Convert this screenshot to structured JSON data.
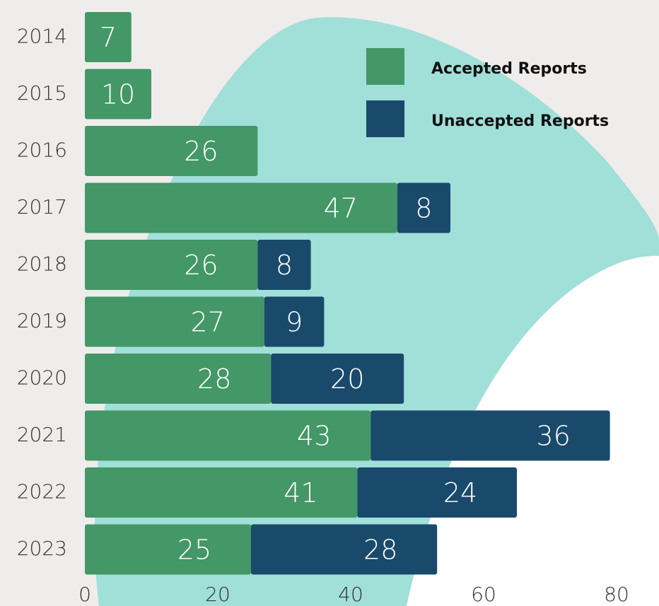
{
  "chart_data": {
    "type": "bar",
    "horizontal": true,
    "stacked": true,
    "categories": [
      "2014",
      "2015",
      "2016",
      "2017",
      "2018",
      "2019",
      "2020",
      "2021",
      "2022",
      "2023"
    ],
    "series": [
      {
        "name": "Accepted Reports",
        "color": "#449767",
        "values": [
          7,
          10,
          26,
          47,
          26,
          27,
          28,
          43,
          41,
          25
        ]
      },
      {
        "name": "Unaccepted Reports",
        "color": "#1a4a6b",
        "values": [
          null,
          null,
          null,
          8,
          8,
          9,
          20,
          36,
          24,
          28
        ]
      }
    ],
    "xlim": [
      0,
      80
    ],
    "xticks": [
      0,
      20,
      40,
      60,
      80
    ]
  }
}
